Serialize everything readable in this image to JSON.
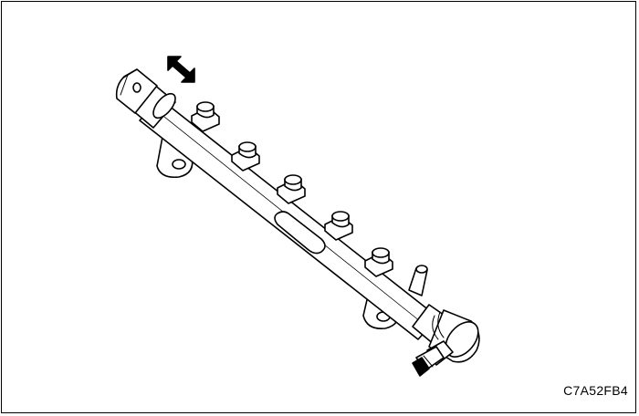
{
  "figure": {
    "code": "C7A52FB4",
    "icons": {
      "arrow": "double-arrow-icon",
      "rail": "fuel-rail-icon",
      "injector_port": "injector-port-icon",
      "pressure_sensor": "pressure-sensor-icon",
      "regulator": "pressure-regulator-icon",
      "connector": "electrical-connector-icon",
      "return_pipe": "return-pipe-icon",
      "bracket": "mounting-bracket-icon"
    },
    "colors": {
      "line": "#000000",
      "fill": "#ffffff",
      "shade": "#d9d9d9"
    }
  }
}
